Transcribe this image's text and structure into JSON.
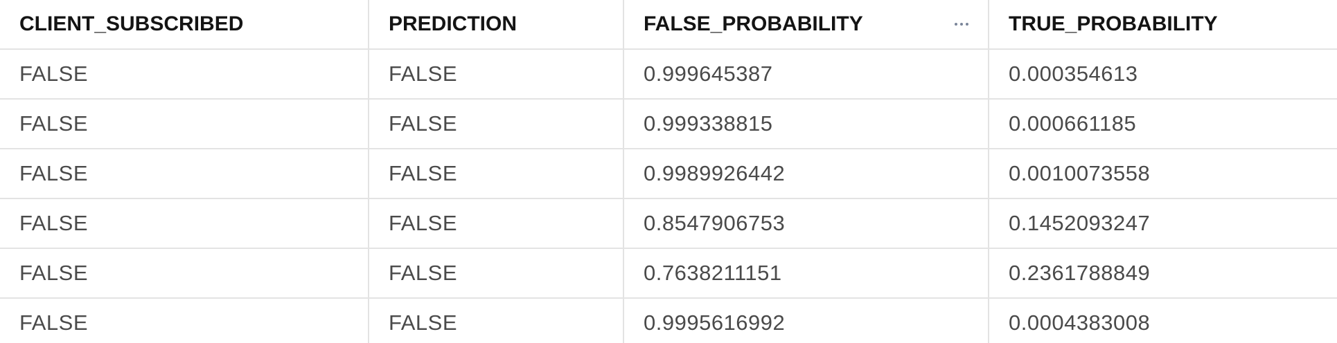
{
  "table": {
    "columns": [
      {
        "label": "CLIENT_SUBSCRIBED"
      },
      {
        "label": "PREDICTION"
      },
      {
        "label": "FALSE_PROBABILITY",
        "menu_icon": "more-horizontal-icon"
      },
      {
        "label": "TRUE_PROBABILITY"
      }
    ],
    "rows": [
      [
        "FALSE",
        "FALSE",
        "0.999645387",
        "0.000354613"
      ],
      [
        "FALSE",
        "FALSE",
        "0.999338815",
        "0.000661185"
      ],
      [
        "FALSE",
        "FALSE",
        "0.9989926442",
        "0.0010073558"
      ],
      [
        "FALSE",
        "FALSE",
        "0.8547906753",
        "0.1452093247"
      ],
      [
        "FALSE",
        "FALSE",
        "0.7638211151",
        "0.2361788849"
      ],
      [
        "FALSE",
        "FALSE",
        "0.9995616992",
        "0.0004383008"
      ]
    ]
  },
  "colors": {
    "header_text": "#141414",
    "cell_text": "#4a4a4a",
    "border": "#e3e3e3",
    "menu_icon": "#7a8599"
  }
}
